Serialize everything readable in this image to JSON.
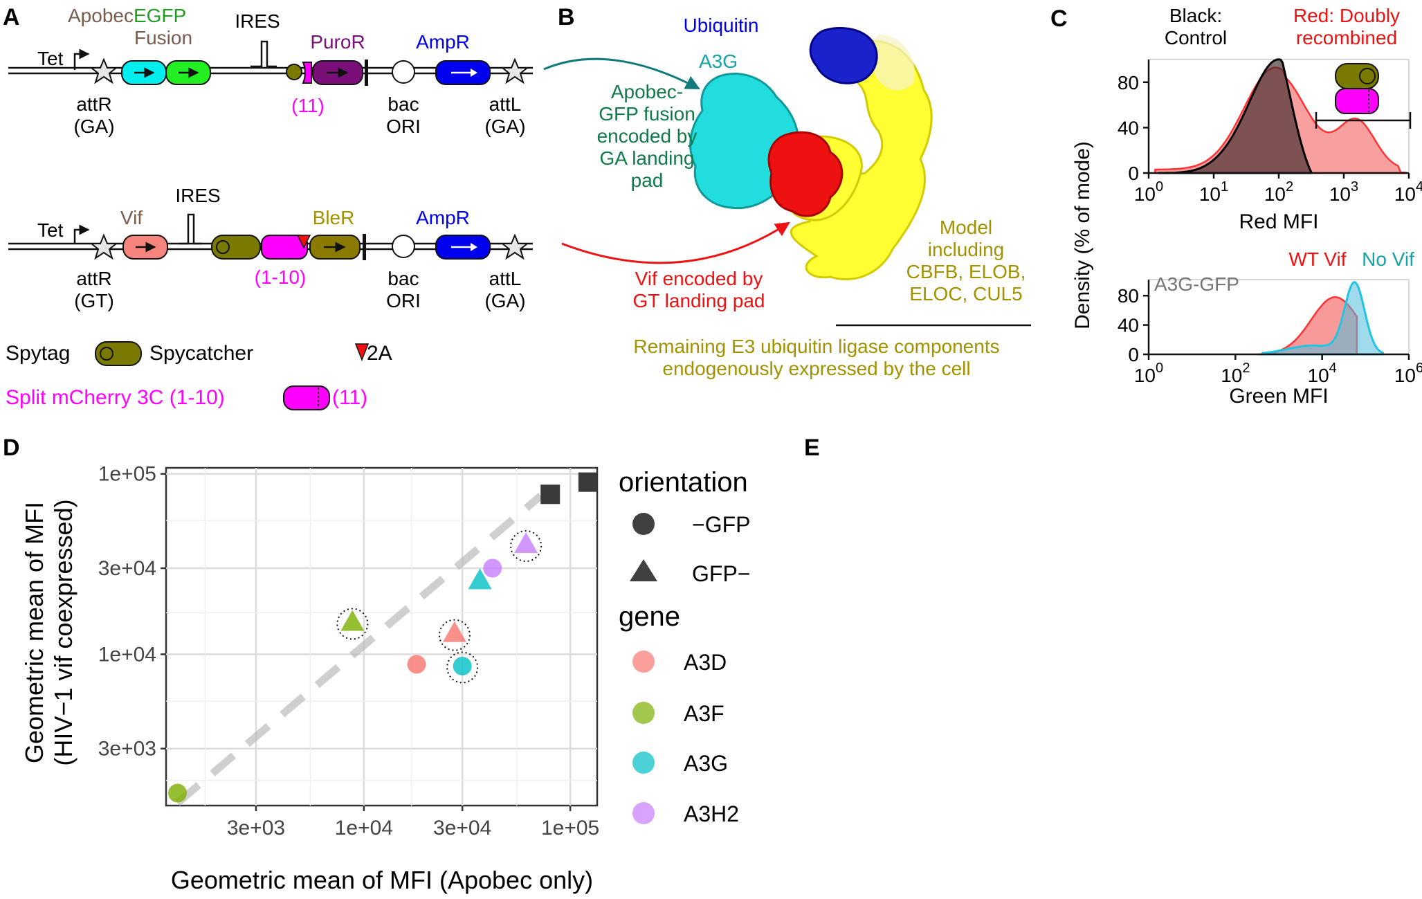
{
  "colors": {
    "brown": "#7a5c4e",
    "green": "#1f9e1f",
    "purple": "#7a0f7a",
    "magenta": "#ff00ff",
    "blue": "#0000ee",
    "cyan": "#16a3a3",
    "red": "#ee1111",
    "olive": "#a09200",
    "darkgreen": "#117a4a",
    "a3d": "#f8766d",
    "a3f": "#7cae00",
    "a3g": "#00bfc4",
    "a3h2": "#c77cff"
  },
  "panels": {
    "a": "A",
    "b": "B",
    "c": "C",
    "d": "D",
    "e": "E"
  },
  "panel_a": {
    "apobec_word": "Apobec",
    "egfp_word": "EGFP",
    "fusion": "Fusion",
    "tet": "Tet",
    "ires": "IRES",
    "puror": "PuroR",
    "ampr": "AmpR",
    "attr": "attR",
    "ga": "(GA)",
    "gt": "(GT)",
    "attl": "attL",
    "bac": "bac",
    "ori": "ORI",
    "eleven": "(11)",
    "vif": "Vif",
    "bler": "BleR",
    "one_ten": "(1-10)",
    "spytag": "Spytag",
    "spycatcher": "Spycatcher",
    "two_a": "2A",
    "split_prefix": "Split mCherry 3C (1-10)",
    "split_suffix": "(11)"
  },
  "panel_b": {
    "ubiquitin": "Ubiquitin",
    "a3g": "A3G",
    "apobec_lines": [
      "Apobec-",
      "GFP fusion",
      "encoded by",
      "GA landing",
      "pad"
    ],
    "vif_lines": [
      "Vif encoded by",
      "GT landing pad"
    ],
    "model_lines": [
      "Model",
      "including",
      "CBFB, ELOB,",
      "ELOC, CUL5"
    ],
    "remaining_lines": [
      "Remaining E3 ubiquitin ligase components",
      "endogenously expressed by the cell"
    ]
  },
  "panel_c": {
    "black_lines": [
      "Black:",
      "Control"
    ],
    "red_lines": [
      "Red: Doubly",
      "recombined"
    ],
    "ylabel": "Density (% of mode)",
    "top_xlabel": "Red MFI",
    "bottom_xlabel": "Green MFI",
    "top_yticks": [
      "0",
      "40",
      "80"
    ],
    "bottom_yticks": [
      "0",
      "40",
      "80"
    ],
    "top_xtick_exps": [
      "0",
      "1",
      "2",
      "3",
      "4"
    ],
    "bottom_xtick_exps": [
      "0",
      "2",
      "4",
      "6"
    ],
    "wt_vif": "WT Vif",
    "no_vif": "No Vif",
    "a3g_gfp": "A3G-GFP"
  },
  "chart_data": {
    "type": "scatter",
    "xlabel": "Geometric mean of MFI (Apobec only)",
    "ylabel_lines": [
      "Geometric mean of MFI",
      "(HIV−1 vif coexpressed)"
    ],
    "x_scale": "log10",
    "y_scale": "log10",
    "xlim": [
      1100,
      135000
    ],
    "ylim": [
      1450,
      108000
    ],
    "xticks": [
      3000,
      10000,
      30000,
      100000
    ],
    "xtick_labels": [
      "3e+03",
      "1e+04",
      "3e+04",
      "1e+05"
    ],
    "yticks": [
      3000,
      10000,
      30000,
      100000
    ],
    "ytick_labels": [
      "3e+03",
      "1e+04",
      "3e+04",
      "1e+05"
    ],
    "grid": true,
    "reference_line": "y = x",
    "legend_position": "right",
    "legend": {
      "orientation_title": "orientation",
      "orientation_items": [
        {
          "label": "−GFP",
          "shape": "circle"
        },
        {
          "label": "GFP−",
          "shape": "triangle"
        }
      ],
      "gene_title": "gene",
      "gene_items": [
        {
          "label": "A3D",
          "color": "#f8766d"
        },
        {
          "label": "A3F",
          "color": "#7cae00"
        },
        {
          "label": "A3G",
          "color": "#00bfc4"
        },
        {
          "label": "A3H2",
          "color": "#c77cff"
        }
      ]
    },
    "points": [
      {
        "x": 1250,
        "y": 1700,
        "gene": "A3F",
        "shape": "circle",
        "circled": false
      },
      {
        "x": 8800,
        "y": 15000,
        "gene": "A3F",
        "shape": "triangle",
        "circled": true
      },
      {
        "x": 18000,
        "y": 8800,
        "gene": "A3D",
        "shape": "circle",
        "circled": false
      },
      {
        "x": 27500,
        "y": 13000,
        "gene": "A3D",
        "shape": "triangle",
        "circled": true
      },
      {
        "x": 30000,
        "y": 8600,
        "gene": "A3G",
        "shape": "circle",
        "circled": true
      },
      {
        "x": 36500,
        "y": 25500,
        "gene": "A3G",
        "shape": "triangle",
        "circled": false
      },
      {
        "x": 42000,
        "y": 30000,
        "gene": "A3H2",
        "shape": "circle",
        "circled": false
      },
      {
        "x": 61000,
        "y": 40500,
        "gene": "A3H2",
        "shape": "triangle",
        "circled": true
      },
      {
        "x": 80000,
        "y": 77000,
        "gene": "control",
        "shape": "square",
        "circled": false
      },
      {
        "x": 122000,
        "y": 90000,
        "gene": "control",
        "shape": "square",
        "circled": false
      }
    ]
  }
}
